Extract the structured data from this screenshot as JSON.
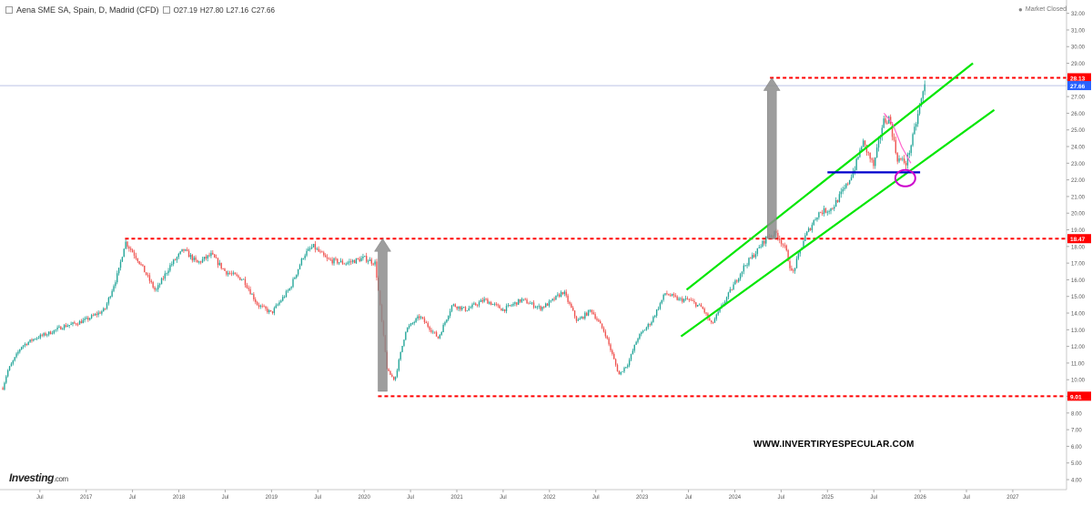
{
  "header": {
    "symbol": "Aena SME SA, Spain, D, Madrid (CFD)",
    "open_label": "O",
    "open": "27.19",
    "high_label": "H",
    "high": "27.80",
    "low_label": "L",
    "low": "27.16",
    "close_label": "C",
    "close": "27.66"
  },
  "status": {
    "text": "Market Closed"
  },
  "watermark": "WWW.INVERTIRYESPECULAR.COM",
  "logo": {
    "main": "Investing",
    "suffix": ".com"
  },
  "colors": {
    "up": "#26a69a",
    "down": "#ef5350",
    "level": "#ff0000",
    "channel": "#00e600",
    "support": "#0000cc",
    "arrow": "#8c8c8c",
    "highlight": "#cc00cc",
    "current": "#2962ff"
  },
  "chart_data": {
    "type": "candlestick",
    "y_axis": {
      "ticks": [
        "4.00",
        "5.00",
        "6.00",
        "7.00",
        "8.00",
        "9.00",
        "10.00",
        "11.00",
        "12.00",
        "13.00",
        "14.00",
        "15.00",
        "16.00",
        "17.00",
        "18.00",
        "19.00",
        "20.00",
        "21.00",
        "22.00",
        "23.00",
        "24.00",
        "25.00",
        "26.00",
        "27.00",
        "28.00",
        "29.00",
        "30.00",
        "31.00",
        "32.00"
      ],
      "range": [
        3.4,
        32.8
      ]
    },
    "x_axis": {
      "ticks": [
        {
          "label": "Jul",
          "t": 2016.5
        },
        {
          "label": "2017",
          "t": 2017.0
        },
        {
          "label": "Jul",
          "t": 2017.5
        },
        {
          "label": "2018",
          "t": 2018.0
        },
        {
          "label": "Jul",
          "t": 2018.5
        },
        {
          "label": "2019",
          "t": 2019.0
        },
        {
          "label": "Jul",
          "t": 2019.5
        },
        {
          "label": "2020",
          "t": 2020.0
        },
        {
          "label": "Jul",
          "t": 2020.5
        },
        {
          "label": "2021",
          "t": 2021.0
        },
        {
          "label": "Jul",
          "t": 2021.5
        },
        {
          "label": "2022",
          "t": 2022.0
        },
        {
          "label": "Jul",
          "t": 2022.5
        },
        {
          "label": "2023",
          "t": 2023.0
        },
        {
          "label": "Jul",
          "t": 2023.5
        },
        {
          "label": "2024",
          "t": 2024.0
        },
        {
          "label": "Jul",
          "t": 2024.5
        },
        {
          "label": "2025",
          "t": 2025.0
        },
        {
          "label": "Jul",
          "t": 2025.5
        },
        {
          "label": "2026",
          "t": 2026.0
        },
        {
          "label": "Jul",
          "t": 2026.5
        },
        {
          "label": "2027",
          "t": 2027.0
        }
      ],
      "range": [
        2016.07,
        2027.58
      ]
    },
    "price_path": [
      [
        2016.1,
        9.5
      ],
      [
        2016.15,
        10.5
      ],
      [
        2016.3,
        12.0
      ],
      [
        2016.45,
        12.5
      ],
      [
        2016.6,
        12.8
      ],
      [
        2016.75,
        13.2
      ],
      [
        2016.9,
        13.4
      ],
      [
        2017.0,
        13.6
      ],
      [
        2017.2,
        14.2
      ],
      [
        2017.35,
        16.5
      ],
      [
        2017.42,
        18.3
      ],
      [
        2017.55,
        17.3
      ],
      [
        2017.75,
        15.3
      ],
      [
        2017.9,
        16.8
      ],
      [
        2018.05,
        17.8
      ],
      [
        2018.2,
        17.0
      ],
      [
        2018.35,
        17.5
      ],
      [
        2018.5,
        16.5
      ],
      [
        2018.7,
        16.0
      ],
      [
        2018.85,
        14.5
      ],
      [
        2019.0,
        14.0
      ],
      [
        2019.2,
        15.5
      ],
      [
        2019.35,
        17.5
      ],
      [
        2019.45,
        18.0
      ],
      [
        2019.6,
        17.2
      ],
      [
        2019.8,
        17.0
      ],
      [
        2020.0,
        17.3
      ],
      [
        2020.12,
        17.0
      ],
      [
        2020.2,
        13.0
      ],
      [
        2020.25,
        10.5
      ],
      [
        2020.33,
        10.0
      ],
      [
        2020.45,
        13.0
      ],
      [
        2020.6,
        13.8
      ],
      [
        2020.8,
        12.5
      ],
      [
        2020.95,
        14.5
      ],
      [
        2021.1,
        14.2
      ],
      [
        2021.3,
        14.8
      ],
      [
        2021.5,
        14.2
      ],
      [
        2021.7,
        14.8
      ],
      [
        2021.9,
        14.3
      ],
      [
        2022.0,
        14.6
      ],
      [
        2022.15,
        15.3
      ],
      [
        2022.3,
        13.5
      ],
      [
        2022.45,
        14.2
      ],
      [
        2022.6,
        12.8
      ],
      [
        2022.75,
        10.3
      ],
      [
        2022.85,
        11.0
      ],
      [
        2022.95,
        12.5
      ],
      [
        2023.1,
        13.5
      ],
      [
        2023.25,
        15.2
      ],
      [
        2023.4,
        14.8
      ],
      [
        2023.5,
        14.8
      ],
      [
        2023.65,
        14.3
      ],
      [
        2023.75,
        13.3
      ],
      [
        2023.9,
        14.8
      ],
      [
        2024.1,
        16.8
      ],
      [
        2024.25,
        17.8
      ],
      [
        2024.35,
        18.6
      ],
      [
        2024.45,
        18.8
      ],
      [
        2024.55,
        17.8
      ],
      [
        2024.62,
        16.3
      ],
      [
        2024.75,
        18.5
      ],
      [
        2024.9,
        20.0
      ],
      [
        2025.05,
        20.3
      ],
      [
        2025.2,
        21.6
      ],
      [
        2025.3,
        22.8
      ],
      [
        2025.38,
        24.3
      ],
      [
        2025.5,
        22.8
      ],
      [
        2025.6,
        25.5
      ],
      [
        2025.67,
        25.7
      ],
      [
        2025.75,
        23.3
      ],
      [
        2025.85,
        23.0
      ],
      [
        2025.92,
        24.5
      ],
      [
        2026.0,
        26.5
      ],
      [
        2026.05,
        27.66
      ]
    ],
    "levels": [
      {
        "name": "resistance-high",
        "price": 28.13,
        "label": "28.13",
        "t_start": 2024.38
      },
      {
        "name": "resistance-mid",
        "price": 18.47,
        "label": "18.47",
        "t_start": 2017.42
      },
      {
        "name": "support-low",
        "price": 9.01,
        "label": "9.01",
        "t_start": 2020.15
      }
    ],
    "current_price": {
      "price": 27.66,
      "label": "27.66"
    },
    "channel": {
      "upper": [
        [
          2023.48,
          15.4
        ],
        [
          2026.57,
          29.0
        ]
      ],
      "lower": [
        [
          2023.42,
          12.6
        ],
        [
          2026.8,
          26.2
        ]
      ]
    },
    "support_line": {
      "t_start": 2025.0,
      "t_end": 2026.0,
      "price": 22.45
    },
    "arrows": [
      {
        "name": "arrow-covid",
        "t": 2020.2,
        "from": 9.3,
        "to": 18.47
      },
      {
        "name": "arrow-target",
        "t": 2024.4,
        "from": 18.47,
        "to": 28.13
      }
    ],
    "highlight_circle": {
      "t": 2025.84,
      "price": 22.1
    },
    "pink_curve": [
      [
        2025.61,
        26.0
      ],
      [
        2025.7,
        25.4
      ],
      [
        2025.8,
        24.0
      ],
      [
        2025.9,
        23.0
      ]
    ]
  }
}
